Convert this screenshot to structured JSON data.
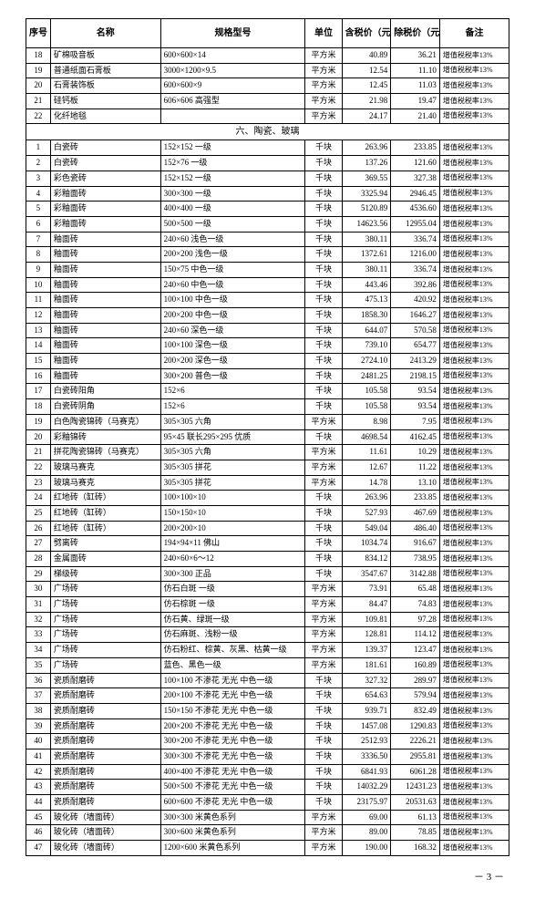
{
  "header": {
    "seq": "序号",
    "name": "名称",
    "spec": "规格型号",
    "unit": "单位",
    "p1": "含税价（元）",
    "p2": "除税价（元）",
    "note": "备注"
  },
  "note_text": "增值税税率13%",
  "page_number": "－ 3 －",
  "top_rows": [
    {
      "seq": "18",
      "name": "矿棉吸音板",
      "spec": "600×600×14",
      "unit": "平方米",
      "p1": "40.89",
      "p2": "36.21"
    },
    {
      "seq": "19",
      "name": "普通纸面石膏板",
      "spec": "3000×1200×9.5",
      "unit": "平方米",
      "p1": "12.54",
      "p2": "11.10"
    },
    {
      "seq": "20",
      "name": "石膏装饰板",
      "spec": "600×600×9",
      "unit": "平方米",
      "p1": "12.45",
      "p2": "11.03"
    },
    {
      "seq": "21",
      "name": "硅钙板",
      "spec": "606×606 高强型",
      "unit": "平方米",
      "p1": "21.98",
      "p2": "19.47"
    },
    {
      "seq": "22",
      "name": "化纤地毯",
      "spec": "",
      "unit": "平方米",
      "p1": "24.17",
      "p2": "21.40"
    }
  ],
  "section_title": "六、陶瓷、玻璃",
  "rows": [
    {
      "seq": "1",
      "name": "白瓷砖",
      "spec": "152×152 一级",
      "unit": "千块",
      "p1": "263.96",
      "p2": "233.85"
    },
    {
      "seq": "2",
      "name": "白瓷砖",
      "spec": "152×76 一级",
      "unit": "千块",
      "p1": "137.26",
      "p2": "121.60"
    },
    {
      "seq": "3",
      "name": "彩色瓷砖",
      "spec": "152×152 一级",
      "unit": "千块",
      "p1": "369.55",
      "p2": "327.38"
    },
    {
      "seq": "4",
      "name": "彩釉面砖",
      "spec": "300×300 一级",
      "unit": "千块",
      "p1": "3325.94",
      "p2": "2946.45"
    },
    {
      "seq": "5",
      "name": "彩釉面砖",
      "spec": "400×400 一级",
      "unit": "千块",
      "p1": "5120.89",
      "p2": "4536.60"
    },
    {
      "seq": "6",
      "name": "彩釉面砖",
      "spec": "500×500 一级",
      "unit": "千块",
      "p1": "14623.56",
      "p2": "12955.04"
    },
    {
      "seq": "7",
      "name": "釉面砖",
      "spec": "240×60 浅色一级",
      "unit": "千块",
      "p1": "380.11",
      "p2": "336.74"
    },
    {
      "seq": "8",
      "name": "釉面砖",
      "spec": "200×200 浅色一级",
      "unit": "千块",
      "p1": "1372.61",
      "p2": "1216.00"
    },
    {
      "seq": "9",
      "name": "釉面砖",
      "spec": "150×75 中色一级",
      "unit": "千块",
      "p1": "380.11",
      "p2": "336.74"
    },
    {
      "seq": "10",
      "name": "釉面砖",
      "spec": "240×60 中色一级",
      "unit": "千块",
      "p1": "443.46",
      "p2": "392.86"
    },
    {
      "seq": "11",
      "name": "釉面砖",
      "spec": "100×100 中色一级",
      "unit": "千块",
      "p1": "475.13",
      "p2": "420.92"
    },
    {
      "seq": "12",
      "name": "釉面砖",
      "spec": "200×200 中色一级",
      "unit": "千块",
      "p1": "1858.30",
      "p2": "1646.27"
    },
    {
      "seq": "13",
      "name": "釉面砖",
      "spec": "240×60 深色一级",
      "unit": "千块",
      "p1": "644.07",
      "p2": "570.58"
    },
    {
      "seq": "14",
      "name": "釉面砖",
      "spec": "100×100 深色一级",
      "unit": "千块",
      "p1": "739.10",
      "p2": "654.77"
    },
    {
      "seq": "15",
      "name": "釉面砖",
      "spec": "200×200 深色一级",
      "unit": "千块",
      "p1": "2724.10",
      "p2": "2413.29"
    },
    {
      "seq": "16",
      "name": "釉面砖",
      "spec": "300×200 普色一级",
      "unit": "千块",
      "p1": "2481.25",
      "p2": "2198.15"
    },
    {
      "seq": "17",
      "name": "白瓷砖阳角",
      "spec": "152×6",
      "unit": "千块",
      "p1": "105.58",
      "p2": "93.54"
    },
    {
      "seq": "18",
      "name": "白瓷砖阴角",
      "spec": "152×6",
      "unit": "千块",
      "p1": "105.58",
      "p2": "93.54"
    },
    {
      "seq": "19",
      "name": "白色陶瓷锦砖（马赛克）",
      "spec": "305×305 六角",
      "unit": "平方米",
      "p1": "8.98",
      "p2": "7.95"
    },
    {
      "seq": "20",
      "name": "彩釉锦砖",
      "spec": "95×45 联长295×295 优质",
      "unit": "千块",
      "p1": "4698.54",
      "p2": "4162.45"
    },
    {
      "seq": "21",
      "name": "拼花陶瓷锦砖（马赛克）",
      "spec": "305×305 六角",
      "unit": "平方米",
      "p1": "11.61",
      "p2": "10.29"
    },
    {
      "seq": "22",
      "name": "玻璃马赛克",
      "spec": "305×305 拼花",
      "unit": "平方米",
      "p1": "12.67",
      "p2": "11.22"
    },
    {
      "seq": "23",
      "name": "玻璃马赛克",
      "spec": "305×305 拼花",
      "unit": "平方米",
      "p1": "14.78",
      "p2": "13.10"
    },
    {
      "seq": "24",
      "name": "红地砖（缸砖）",
      "spec": "100×100×10",
      "unit": "千块",
      "p1": "263.96",
      "p2": "233.85"
    },
    {
      "seq": "25",
      "name": "红地砖（缸砖）",
      "spec": "150×150×10",
      "unit": "千块",
      "p1": "527.93",
      "p2": "467.69"
    },
    {
      "seq": "26",
      "name": "红地砖（缸砖）",
      "spec": "200×200×10",
      "unit": "千块",
      "p1": "549.04",
      "p2": "486.40"
    },
    {
      "seq": "27",
      "name": "劈离砖",
      "spec": "194×94×11 佛山",
      "unit": "千块",
      "p1": "1034.74",
      "p2": "916.67"
    },
    {
      "seq": "28",
      "name": "金属面砖",
      "spec": "240×60×6～12",
      "unit": "千块",
      "p1": "834.12",
      "p2": "738.95"
    },
    {
      "seq": "29",
      "name": "梯级砖",
      "spec": "300×300 正品",
      "unit": "千块",
      "p1": "3547.67",
      "p2": "3142.88"
    },
    {
      "seq": "30",
      "name": "广场砖",
      "spec": "仿石白斑 一级",
      "unit": "平方米",
      "p1": "73.91",
      "p2": "65.48"
    },
    {
      "seq": "31",
      "name": "广场砖",
      "spec": "仿石棕斑 一级",
      "unit": "平方米",
      "p1": "84.47",
      "p2": "74.83"
    },
    {
      "seq": "32",
      "name": "广场砖",
      "spec": "仿石黄、绿斑一级",
      "unit": "平方米",
      "p1": "109.81",
      "p2": "97.28"
    },
    {
      "seq": "33",
      "name": "广场砖",
      "spec": "仿石麻斑、浅粉一级",
      "unit": "平方米",
      "p1": "128.81",
      "p2": "114.12"
    },
    {
      "seq": "34",
      "name": "广场砖",
      "spec": "仿石粉红、棕黄、灰黑、枯黄一级",
      "unit": "平方米",
      "p1": "139.37",
      "p2": "123.47"
    },
    {
      "seq": "35",
      "name": "广场砖",
      "spec": "蓝色、黑色一级",
      "unit": "平方米",
      "p1": "181.61",
      "p2": "160.89"
    },
    {
      "seq": "36",
      "name": "瓷质耐磨砖",
      "spec": "100×100 不渗花 无光 中色一级",
      "unit": "千块",
      "p1": "327.32",
      "p2": "289.97"
    },
    {
      "seq": "37",
      "name": "瓷质耐磨砖",
      "spec": "200×100 不渗花 无光 中色一级",
      "unit": "千块",
      "p1": "654.63",
      "p2": "579.94"
    },
    {
      "seq": "38",
      "name": "瓷质耐磨砖",
      "spec": "150×150 不渗花 无光 中色一级",
      "unit": "千块",
      "p1": "939.71",
      "p2": "832.49"
    },
    {
      "seq": "39",
      "name": "瓷质耐磨砖",
      "spec": "200×200 不渗花 无光 中色一级",
      "unit": "千块",
      "p1": "1457.08",
      "p2": "1290.83"
    },
    {
      "seq": "40",
      "name": "瓷质耐磨砖",
      "spec": "300×200 不渗花 无光 中色一级",
      "unit": "千块",
      "p1": "2512.93",
      "p2": "2226.21"
    },
    {
      "seq": "41",
      "name": "瓷质耐磨砖",
      "spec": "300×300 不渗花 无光 中色一级",
      "unit": "千块",
      "p1": "3336.50",
      "p2": "2955.81"
    },
    {
      "seq": "42",
      "name": "瓷质耐磨砖",
      "spec": "400×400 不渗花 无光 中色一级",
      "unit": "千块",
      "p1": "6841.93",
      "p2": "6061.28"
    },
    {
      "seq": "43",
      "name": "瓷质耐磨砖",
      "spec": "500×500 不渗花 无光 中色一级",
      "unit": "千块",
      "p1": "14032.29",
      "p2": "12431.23"
    },
    {
      "seq": "44",
      "name": "瓷质耐磨砖",
      "spec": "600×600 不渗花 无光 中色一级",
      "unit": "千块",
      "p1": "23175.97",
      "p2": "20531.63"
    },
    {
      "seq": "45",
      "name": "玻化砖（墙面砖）",
      "spec": "300×300 米黄色系列",
      "unit": "平方米",
      "p1": "69.00",
      "p2": "61.13"
    },
    {
      "seq": "46",
      "name": "玻化砖（墙面砖）",
      "spec": "300×600 米黄色系列",
      "unit": "平方米",
      "p1": "89.00",
      "p2": "78.85"
    },
    {
      "seq": "47",
      "name": "玻化砖（墙面砖）",
      "spec": "1200×600 米黄色系列",
      "unit": "平方米",
      "p1": "190.00",
      "p2": "168.32"
    }
  ]
}
